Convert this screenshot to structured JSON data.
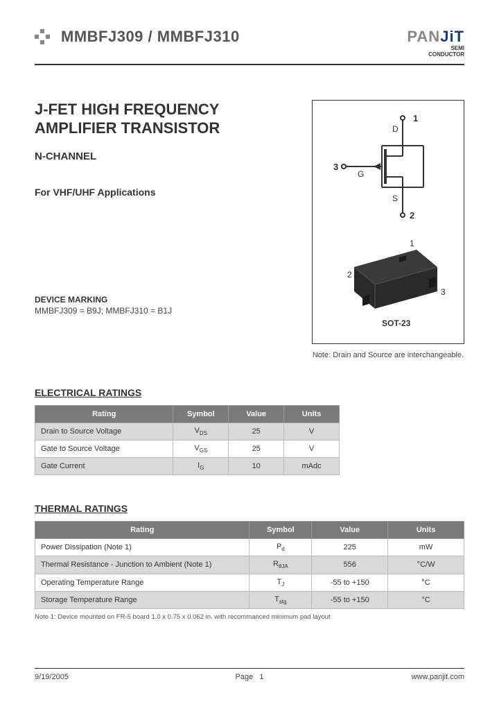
{
  "header": {
    "part_number": "MMBFJ309 / MMBFJ310",
    "brand_pan": "PAN",
    "brand_jit": "JiT",
    "brand_sub1": "SEMI",
    "brand_sub2": "CONDUCTOR"
  },
  "main": {
    "title_line1": "J-FET HIGH FREQUENCY",
    "title_line2": "AMPLIFIER TRANSISTOR",
    "subtitle": "N-CHANNEL",
    "application": "For VHF/UHF Applications",
    "marking_title": "DEVICE MARKING",
    "marking_text": "MMBFJ309 = B9J;   MMBFJ310 = B1J"
  },
  "diagram": {
    "pin1_label": "1",
    "pin2_label": "2",
    "pin3_label": "3",
    "terminal_d": "D",
    "terminal_g": "G",
    "terminal_s": "S",
    "package_label": "SOT-23",
    "note": "Note: Drain and Source are interchangeable."
  },
  "electrical": {
    "section_title": "ELECTRICAL RATINGS",
    "headers": {
      "rating": "Rating",
      "symbol": "Symbol",
      "value": "Value",
      "units": "Units"
    },
    "rows": [
      {
        "rating": "Drain to Source Voltage",
        "symbol_main": "V",
        "symbol_sub": "DS",
        "value": "25",
        "units": "V",
        "shade": true
      },
      {
        "rating": "Gate to Source Voltage",
        "symbol_main": "V",
        "symbol_sub": "GS",
        "value": "25",
        "units": "V",
        "shade": false
      },
      {
        "rating": "Gate Current",
        "symbol_main": "I",
        "symbol_sub": "G",
        "value": "10",
        "units": "mAdc",
        "shade": true
      }
    ]
  },
  "thermal": {
    "section_title": "THERMAL RATINGS",
    "headers": {
      "rating": "Rating",
      "symbol": "Symbol",
      "value": "Value",
      "units": "Units"
    },
    "rows": [
      {
        "rating": "Power Dissipation (Note 1)",
        "symbol_main": "P",
        "symbol_sub": "d",
        "value": "225",
        "units": "mW",
        "shade": false
      },
      {
        "rating": "Thermal Resistance - Junction to Ambient (Note 1)",
        "symbol_main": "R",
        "symbol_sub": "θJA",
        "value": "556",
        "units": "°C/W",
        "shade": true
      },
      {
        "rating": "Operating Temperature Range",
        "symbol_main": "T",
        "symbol_sub": "J",
        "value": "-55 to +150",
        "units": "°C",
        "shade": false
      },
      {
        "rating": "Storage Temperature Range",
        "symbol_main": "T",
        "symbol_sub": "stg",
        "value": "-55 to +150",
        "units": "°C",
        "shade": true
      }
    ],
    "footnote": "Note 1:  Device mounted on FR-5 board 1.0 x 0.75 x 0.062 in. with recommanced minimum pad layout"
  },
  "footer": {
    "date": "9/19/2005",
    "page_label": "Page",
    "page_num": "1",
    "url": "www.panjit.com"
  }
}
